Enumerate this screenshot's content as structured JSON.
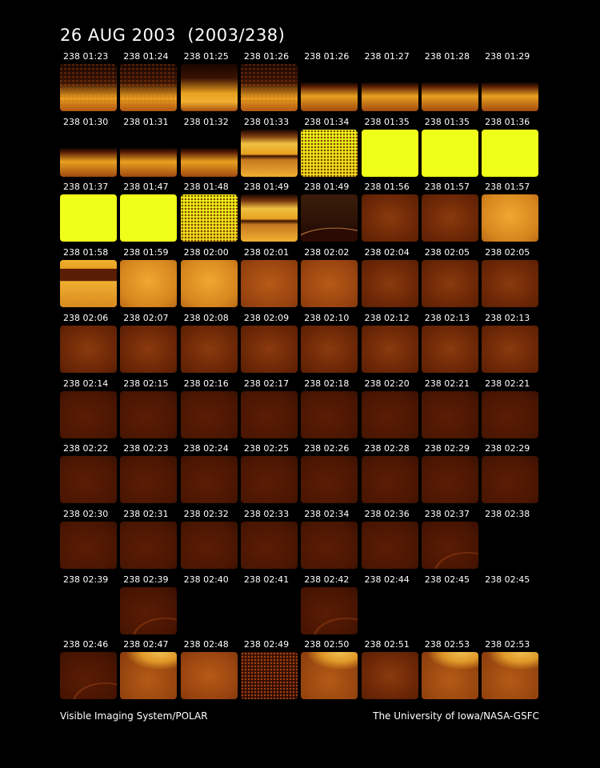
{
  "title": "26 AUG 2003  (2003/238)",
  "footer": {
    "left": "Visible Imaging System/POLAR",
    "right": "The University of Iowa/NASA-GSFC"
  },
  "colors": {
    "background": "#000000",
    "saturated": "#f0ff1a",
    "bright": "#e8a020",
    "medium": "#a84c10",
    "dim": "#6a2404",
    "faint": "#4a1602"
  },
  "frames": [
    {
      "label": "238 01:23",
      "style": "band-noisy"
    },
    {
      "label": "238 01:24",
      "style": "band-noisy"
    },
    {
      "label": "238 01:25",
      "style": "band-bright"
    },
    {
      "label": "238 01:26",
      "style": "band-noisy"
    },
    {
      "label": "238 01:26",
      "style": "band"
    },
    {
      "label": "238 01:27",
      "style": "band"
    },
    {
      "label": "238 01:28",
      "style": "band"
    },
    {
      "label": "238 01:29",
      "style": "band"
    },
    {
      "label": "238 01:30",
      "style": "band"
    },
    {
      "label": "238 01:31",
      "style": "band"
    },
    {
      "label": "238 01:32",
      "style": "band"
    },
    {
      "label": "238 01:33",
      "style": "split-bright"
    },
    {
      "label": "238 01:34",
      "style": "speckle-yellow"
    },
    {
      "label": "238 01:35",
      "style": "saturated"
    },
    {
      "label": "238 01:35",
      "style": "saturated"
    },
    {
      "label": "238 01:36",
      "style": "saturated"
    },
    {
      "label": "238 01:37",
      "style": "saturated"
    },
    {
      "label": "238 01:47",
      "style": "saturated"
    },
    {
      "label": "238 01:48",
      "style": "speckle-yellow"
    },
    {
      "label": "238 01:49",
      "style": "split-bright"
    },
    {
      "label": "238 01:49",
      "style": "arc-dark"
    },
    {
      "label": "238 01:56",
      "style": "dim"
    },
    {
      "label": "238 01:57",
      "style": "dim"
    },
    {
      "label": "238 01:57",
      "style": "bright"
    },
    {
      "label": "238 01:58",
      "style": "striped"
    },
    {
      "label": "238 01:59",
      "style": "bright"
    },
    {
      "label": "238 02:00",
      "style": "bright"
    },
    {
      "label": "238 02:01",
      "style": "medium"
    },
    {
      "label": "238 02:02",
      "style": "medium"
    },
    {
      "label": "238 02:04",
      "style": "dim"
    },
    {
      "label": "238 02:05",
      "style": "dim"
    },
    {
      "label": "238 02:05",
      "style": "dim"
    },
    {
      "label": "238 02:06",
      "style": "dim"
    },
    {
      "label": "238 02:07",
      "style": "dim"
    },
    {
      "label": "238 02:08",
      "style": "dim"
    },
    {
      "label": "238 02:09",
      "style": "dim"
    },
    {
      "label": "238 02:10",
      "style": "dim"
    },
    {
      "label": "238 02:12",
      "style": "dim"
    },
    {
      "label": "238 02:13",
      "style": "dim"
    },
    {
      "label": "238 02:13",
      "style": "dim"
    },
    {
      "label": "238 02:14",
      "style": "faint"
    },
    {
      "label": "238 02:15",
      "style": "faint"
    },
    {
      "label": "238 02:16",
      "style": "faint"
    },
    {
      "label": "238 02:17",
      "style": "faint"
    },
    {
      "label": "238 02:18",
      "style": "faint"
    },
    {
      "label": "238 02:20",
      "style": "faint"
    },
    {
      "label": "238 02:21",
      "style": "faint"
    },
    {
      "label": "238 02:21",
      "style": "faint"
    },
    {
      "label": "238 02:22",
      "style": "faint"
    },
    {
      "label": "238 02:23",
      "style": "faint"
    },
    {
      "label": "238 02:24",
      "style": "faint"
    },
    {
      "label": "238 02:25",
      "style": "faint"
    },
    {
      "label": "238 02:26",
      "style": "faint"
    },
    {
      "label": "238 02:28",
      "style": "faint"
    },
    {
      "label": "238 02:29",
      "style": "faint"
    },
    {
      "label": "238 02:29",
      "style": "faint"
    },
    {
      "label": "238 02:30",
      "style": "faint"
    },
    {
      "label": "238 02:31",
      "style": "faint"
    },
    {
      "label": "238 02:32",
      "style": "faint"
    },
    {
      "label": "238 02:33",
      "style": "faint"
    },
    {
      "label": "238 02:34",
      "style": "faint"
    },
    {
      "label": "238 02:36",
      "style": "faint"
    },
    {
      "label": "238 02:37",
      "style": "faint-arc"
    },
    {
      "label": "238 02:38",
      "style": "blank"
    },
    {
      "label": "238 02:39",
      "style": "blank"
    },
    {
      "label": "238 02:39",
      "style": "faint-arc"
    },
    {
      "label": "238 02:40",
      "style": "blank"
    },
    {
      "label": "238 02:41",
      "style": "blank"
    },
    {
      "label": "238 02:42",
      "style": "faint-arc"
    },
    {
      "label": "238 02:44",
      "style": "blank"
    },
    {
      "label": "238 02:45",
      "style": "blank"
    },
    {
      "label": "238 02:45",
      "style": "blank"
    },
    {
      "label": "238 02:46",
      "style": "faint-arc"
    },
    {
      "label": "238 02:47",
      "style": "aurora"
    },
    {
      "label": "238 02:48",
      "style": "medium"
    },
    {
      "label": "238 02:49",
      "style": "noisy-dark"
    },
    {
      "label": "238 02:50",
      "style": "aurora"
    },
    {
      "label": "238 02:51",
      "style": "dim"
    },
    {
      "label": "238 02:53",
      "style": "aurora"
    },
    {
      "label": "238 02:53",
      "style": "aurora"
    }
  ]
}
